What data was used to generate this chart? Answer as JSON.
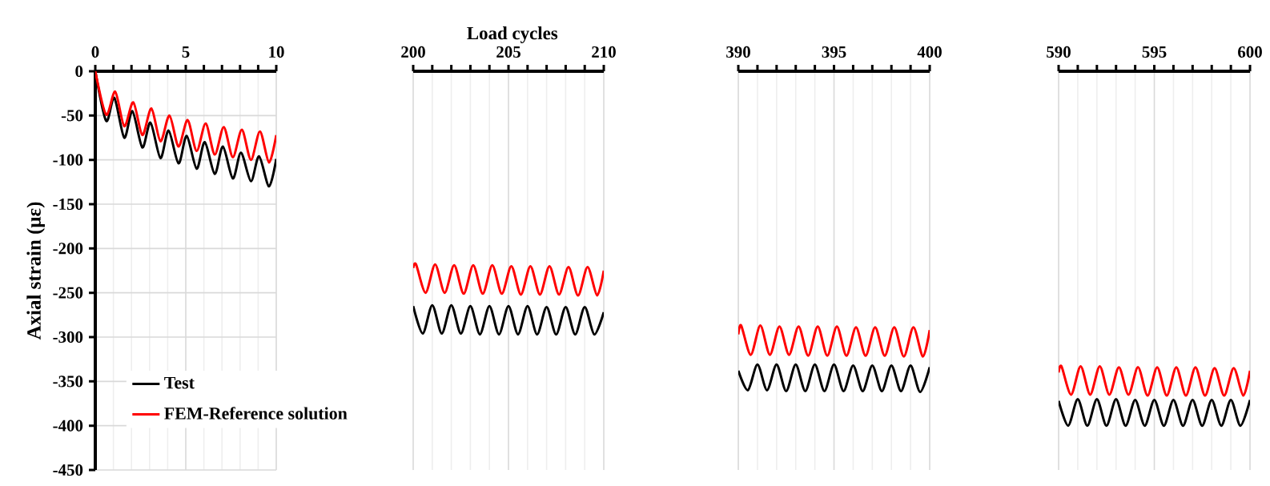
{
  "chart_data": [
    {
      "type": "line",
      "ylabel": "Axial strain (με)",
      "xlim": [
        0,
        10
      ],
      "xticks": [
        0,
        5,
        10
      ],
      "ylim": [
        -450,
        0
      ],
      "yticks": [
        -450,
        -400,
        -350,
        -300,
        -250,
        -200,
        -150,
        -100,
        -50,
        0
      ],
      "grid": true,
      "legend": "bottom right",
      "line_style": "solid",
      "marker": "none",
      "series": [
        {
          "name": "Test",
          "color": "#000000",
          "x": [
            0,
            0.6,
            1.05,
            1.6,
            2.05,
            2.6,
            3.05,
            3.6,
            4.05,
            4.6,
            5.05,
            5.6,
            6.05,
            6.6,
            7.05,
            7.6,
            8.05,
            8.6,
            9.05,
            9.6,
            10
          ],
          "values": [
            0,
            -56,
            -30,
            -75,
            -45,
            -86,
            -58,
            -98,
            -67,
            -104,
            -73,
            -110,
            -80,
            -116,
            -85,
            -121,
            -92,
            -124,
            -96,
            -130,
            -99
          ]
        },
        {
          "name": "FEM-Reference solution",
          "color": "#ff0000",
          "x": [
            0,
            0.6,
            1.1,
            1.6,
            2.1,
            2.6,
            3.1,
            3.6,
            4.1,
            4.6,
            5.1,
            5.6,
            6.1,
            6.6,
            7.1,
            7.6,
            8.1,
            8.6,
            9.1,
            9.6,
            10
          ],
          "values": [
            0,
            -49,
            -23,
            -62,
            -35,
            -72,
            -42,
            -79,
            -50,
            -85,
            -55,
            -90,
            -59,
            -94,
            -63,
            -97,
            -66,
            -100,
            -68,
            -103,
            -72
          ]
        }
      ]
    },
    {
      "type": "line",
      "xlabel": "Load cycles",
      "xlim": [
        200,
        210
      ],
      "xticks": [
        200,
        205,
        210
      ],
      "ylim": [
        -450,
        0
      ],
      "yticks": [
        -450,
        -400,
        -350,
        -300,
        -250,
        -200,
        -150,
        -100,
        -50,
        0
      ],
      "grid": true,
      "tick_labels": "x",
      "line_style": "solid",
      "marker": "none",
      "series": [
        {
          "color": "#000000",
          "x": [
            200,
            200.5,
            201,
            201.5,
            202,
            202.5,
            203,
            203.5,
            204,
            204.5,
            205,
            205.5,
            206,
            206.5,
            207,
            207.5,
            208,
            208.5,
            209,
            209.5,
            210
          ],
          "values": [
            -265,
            -296,
            -264,
            -296,
            -264,
            -296,
            -265,
            -297,
            -265,
            -297,
            -265,
            -297,
            -265,
            -297,
            -266,
            -297,
            -266,
            -297,
            -266,
            -297,
            -272
          ]
        },
        {
          "color": "#ff0000",
          "x": [
            200,
            200.15,
            200.65,
            201.15,
            201.65,
            202.15,
            202.65,
            203.15,
            203.65,
            204.15,
            204.65,
            205.15,
            205.65,
            206.15,
            206.65,
            207.15,
            207.65,
            208.15,
            208.65,
            209.15,
            209.65,
            210
          ],
          "values": [
            -222,
            -218,
            -250,
            -218,
            -250,
            -219,
            -251,
            -219,
            -251,
            -219,
            -251,
            -220,
            -252,
            -220,
            -252,
            -220,
            -252,
            -221,
            -253,
            -221,
            -253,
            -225
          ]
        }
      ]
    },
    {
      "type": "line",
      "xlim": [
        390,
        400
      ],
      "xticks": [
        390,
        395,
        400
      ],
      "ylim": [
        -450,
        0
      ],
      "yticks": [
        -450,
        -400,
        -350,
        -300,
        -250,
        -200,
        -150,
        -100,
        -50,
        0
      ],
      "grid": true,
      "tick_labels": "x",
      "line_style": "solid",
      "marker": "none",
      "series": [
        {
          "color": "#000000",
          "x": [
            390,
            390.5,
            391,
            391.5,
            392,
            392.5,
            393,
            393.5,
            394,
            394.5,
            395,
            395.5,
            396,
            396.5,
            397,
            397.5,
            398,
            398.5,
            399,
            399.5,
            400
          ],
          "values": [
            -338,
            -360,
            -331,
            -360,
            -331,
            -361,
            -331,
            -361,
            -331,
            -361,
            -331,
            -361,
            -332,
            -361,
            -332,
            -361,
            -332,
            -361,
            -332,
            -362,
            -334
          ]
        },
        {
          "color": "#ff0000",
          "x": [
            390,
            390.15,
            390.65,
            391.15,
            391.65,
            392.15,
            392.65,
            393.15,
            393.65,
            394.15,
            394.65,
            395.15,
            395.65,
            396.15,
            396.65,
            397.15,
            397.65,
            398.15,
            398.65,
            399.15,
            399.65,
            400
          ],
          "values": [
            -297,
            -287,
            -320,
            -287,
            -320,
            -288,
            -320,
            -288,
            -321,
            -288,
            -321,
            -288,
            -321,
            -289,
            -321,
            -289,
            -321,
            -289,
            -322,
            -289,
            -322,
            -292
          ]
        }
      ]
    },
    {
      "type": "line",
      "xlim": [
        590,
        600
      ],
      "xticks": [
        590,
        595,
        600
      ],
      "ylim": [
        -450,
        0
      ],
      "yticks": [
        -450,
        -400,
        -350,
        -300,
        -250,
        -200,
        -150,
        -100,
        -50,
        0
      ],
      "grid": true,
      "tick_labels": "x",
      "line_style": "solid",
      "marker": "none",
      "series": [
        {
          "color": "#000000",
          "x": [
            590,
            590.5,
            591,
            591.5,
            592,
            592.5,
            593,
            593.5,
            594,
            594.5,
            595,
            595.5,
            596,
            596.5,
            597,
            597.5,
            598,
            598.5,
            599,
            599.5,
            600
          ],
          "values": [
            -372,
            -400,
            -370,
            -400,
            -370,
            -400,
            -370,
            -400,
            -371,
            -400,
            -371,
            -400,
            -371,
            -400,
            -371,
            -400,
            -371,
            -400,
            -371,
            -400,
            -371
          ]
        },
        {
          "color": "#ff0000",
          "x": [
            590,
            590.15,
            590.65,
            591.15,
            591.65,
            592.15,
            592.65,
            593.15,
            593.65,
            594.15,
            594.65,
            595.15,
            595.65,
            596.15,
            596.65,
            597.15,
            597.65,
            598.15,
            598.65,
            599.15,
            599.65,
            600
          ],
          "values": [
            -340,
            -333,
            -365,
            -333,
            -365,
            -333,
            -365,
            -334,
            -365,
            -334,
            -366,
            -334,
            -366,
            -334,
            -366,
            -334,
            -366,
            -335,
            -366,
            -335,
            -366,
            -338
          ]
        }
      ]
    }
  ]
}
